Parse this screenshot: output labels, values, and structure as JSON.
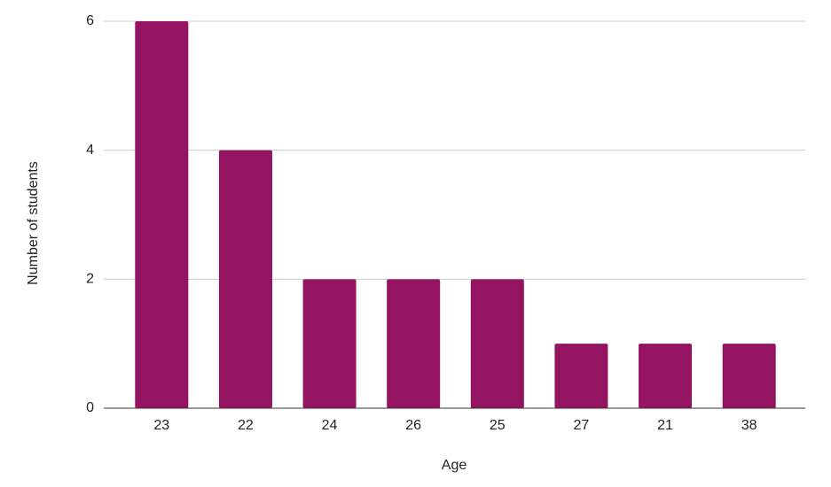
{
  "chart_data": {
    "type": "bar",
    "x_label": "Age",
    "y_label": "Number of students",
    "categories": [
      "23",
      "22",
      "24",
      "26",
      "25",
      "27",
      "21",
      "38"
    ],
    "values": [
      6,
      4,
      2,
      2,
      2,
      1,
      1,
      1
    ],
    "color": "#941462",
    "ylim": [
      0,
      6
    ],
    "yticks": [
      0,
      2,
      4,
      6
    ],
    "grid": true
  }
}
